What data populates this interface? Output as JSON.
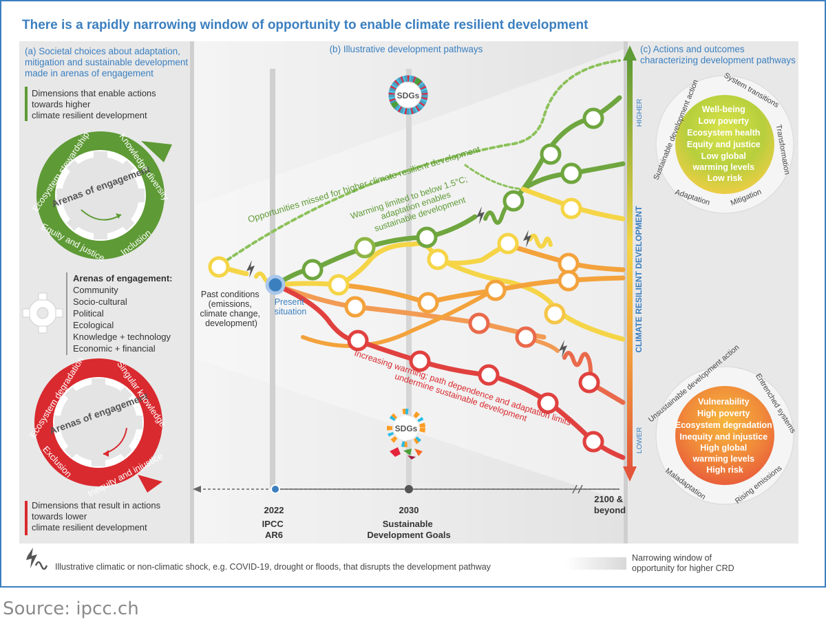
{
  "title": "There is a rapidly narrowing window of opportunity to enable climate resilient development",
  "panel_a": {
    "heading": [
      "(a) Societal choices about adaptation,",
      "mitigation and sustainable development",
      "made in arenas of engagement"
    ],
    "higher_dims": [
      "Dimensions that enable actions",
      "towards higher",
      "climate resilient development"
    ],
    "higher_gear": {
      "center": "Arenas of engagement",
      "ring": [
        "Ecosystem stewardship",
        "Knowledge diversity",
        "Inclusion",
        "Equity and justice"
      ],
      "color": "#5e9a35"
    },
    "arenas_title": "Arenas of engagement:",
    "arenas": [
      "Community",
      "Socio-cultural",
      "Political",
      "Ecological",
      "Knowledge + technology",
      "Economic + financial"
    ],
    "lower_gear": {
      "center": "Arenas of engagement",
      "ring": [
        "Ecosystem degradation",
        "Singular knowledge",
        "Inequity and injustice",
        "Exclusion"
      ],
      "color": "#d92a2f"
    },
    "lower_dims": [
      "Dimensions that result in actions",
      "towards lower",
      "climate resilient development"
    ]
  },
  "panel_b": {
    "heading": "(b) Illustrative development pathways",
    "past_conditions": [
      "Past conditions",
      "(emissions,",
      "climate change,",
      "development)"
    ],
    "present": [
      "Present",
      "situation"
    ],
    "missed": "Opportunities missed for higher climate resilient development",
    "higher_path": [
      "Warming limited to below 1.5°C;",
      "adaptation enables",
      "sustainable development"
    ],
    "lower_path": [
      "Increasing warming; path dependence and adaptation limits",
      "undermine sustainable development"
    ],
    "sdgs": "SDGs",
    "timeline": [
      {
        "label": "2022",
        "sub": [
          "IPCC",
          "AR6"
        ]
      },
      {
        "label": "2030",
        "sub": [
          "Sustainable",
          "Development Goals"
        ]
      },
      {
        "label": [
          "2100 &",
          "beyond"
        ],
        "sub": []
      }
    ]
  },
  "panel_c": {
    "heading": [
      "(c) Actions and outcomes",
      "characterizing development pathways"
    ],
    "axis": "CLIMATE RESILIENT DEVELOPMENT",
    "higher": "HIGHER",
    "lower": "LOWER",
    "higher_circle": {
      "outcomes": [
        "Well-being",
        "Low poverty",
        "Ecosystem health",
        "Equity and justice",
        "Low global",
        "warming levels",
        "Low risk"
      ],
      "ring": [
        "Sustainable development action",
        "System transitions",
        "Transformation",
        "Mitigation",
        "Adaptation"
      ]
    },
    "lower_circle": {
      "outcomes": [
        "Vulnerability",
        "High poverty",
        "Ecosystem degradation",
        "Inequity and injustice",
        "High global",
        "warming levels",
        "High risk"
      ],
      "ring": [
        "Unsustainable development action",
        "Entrenched systems",
        "Rising emissions",
        "Maladaptation"
      ]
    }
  },
  "legend": {
    "shock": "Illustrative climatic or non-climatic shock, e.g. COVID-19, drought or floods, that disrupts the development pathway",
    "window": [
      "Narrowing window of",
      "opportunity for higher CRD"
    ]
  },
  "source": "Source: ipcc.ch",
  "colors": {
    "title": "#3b7fbf",
    "green": "#5e9a35",
    "red": "#d92a2f",
    "yellow": "#f5d547",
    "orange": "#f3a23c",
    "blue": "#3b7fbf"
  }
}
